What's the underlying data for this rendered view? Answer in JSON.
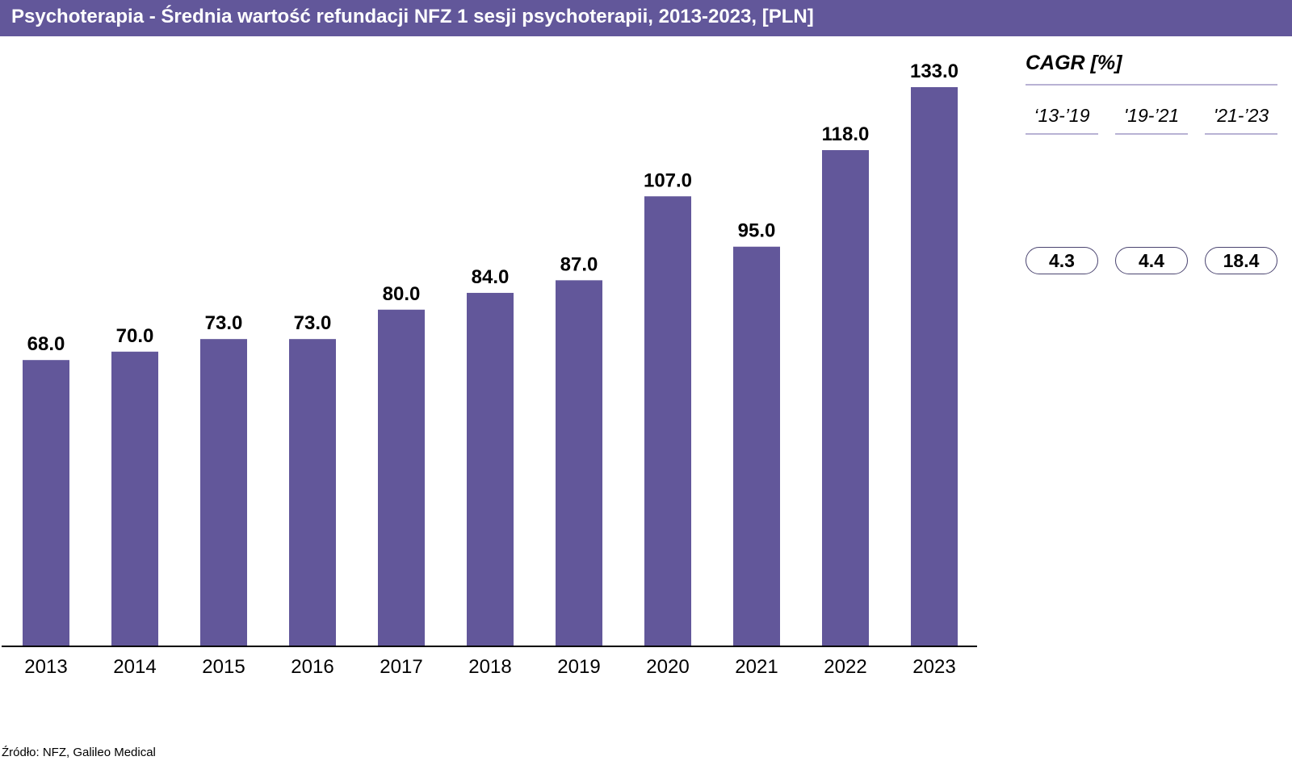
{
  "title": "Psychoterapia - Średnia wartość refundacji NFZ 1 sesji psychoterapii, 2013-2023, [PLN]",
  "colors": {
    "bar": "#62579a",
    "header_bg": "#62579a",
    "axis": "#000000"
  },
  "chart_data": {
    "type": "bar",
    "title": "Psychoterapia - Średnia wartość refundacji NFZ 1 sesji psychoterapii, 2013-2023, [PLN]",
    "categories": [
      "2013",
      "2014",
      "2015",
      "2016",
      "2017",
      "2018",
      "2019",
      "2020",
      "2021",
      "2022",
      "2023"
    ],
    "values": [
      68.0,
      70.0,
      73.0,
      73.0,
      80.0,
      84.0,
      87.0,
      107.0,
      95.0,
      118.0,
      133.0
    ],
    "value_labels": [
      "68.0",
      "70.0",
      "73.0",
      "73.0",
      "80.0",
      "84.0",
      "87.0",
      "107.0",
      "95.0",
      "118.0",
      "133.0"
    ],
    "xlabel": "",
    "ylabel": "",
    "ylim": [
      0,
      133
    ],
    "grid": false,
    "legend": "none"
  },
  "cagr": {
    "title": "CAGR [%]",
    "periods": [
      {
        "label": "‘13-’19",
        "value": "4.3"
      },
      {
        "label": "'19-’21",
        "value": "4.4"
      },
      {
        "label": "'21-’23",
        "value": "18.4"
      }
    ]
  },
  "source": "Źródło: NFZ, Galileo Medical"
}
